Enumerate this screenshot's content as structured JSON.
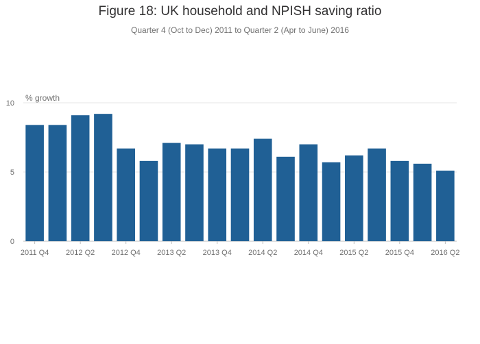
{
  "chart_data": {
    "type": "bar",
    "title": "Figure 18: UK household and NPISH saving ratio",
    "subtitle": "Quarter 4 (Oct to Dec) 2011 to Quarter 2 (Apr to June) 2016",
    "ylabel": "% growth",
    "xlabel": "",
    "ylim": [
      0,
      10
    ],
    "yticks": [
      0,
      5,
      10
    ],
    "grid": true,
    "legend": "none",
    "bar_color": "#206095",
    "categories": [
      "2011 Q4",
      "2012 Q1",
      "2012 Q2",
      "2012 Q3",
      "2012 Q4",
      "2013 Q1",
      "2013 Q2",
      "2013 Q3",
      "2013 Q4",
      "2014 Q1",
      "2014 Q2",
      "2014 Q3",
      "2014 Q4",
      "2015 Q1",
      "2015 Q2",
      "2015 Q3",
      "2015 Q4",
      "2016 Q1",
      "2016 Q2"
    ],
    "xtick_labels": [
      "2011 Q4",
      "2012 Q2",
      "2012 Q4",
      "2013 Q2",
      "2013 Q4",
      "2014 Q2",
      "2014 Q4",
      "2015 Q2",
      "2015 Q4",
      "2016 Q2"
    ],
    "values": [
      8.4,
      8.4,
      9.1,
      9.2,
      6.7,
      5.8,
      7.1,
      7.0,
      6.7,
      6.7,
      7.4,
      6.1,
      7.0,
      5.7,
      6.2,
      6.7,
      5.8,
      5.6,
      5.1
    ]
  }
}
